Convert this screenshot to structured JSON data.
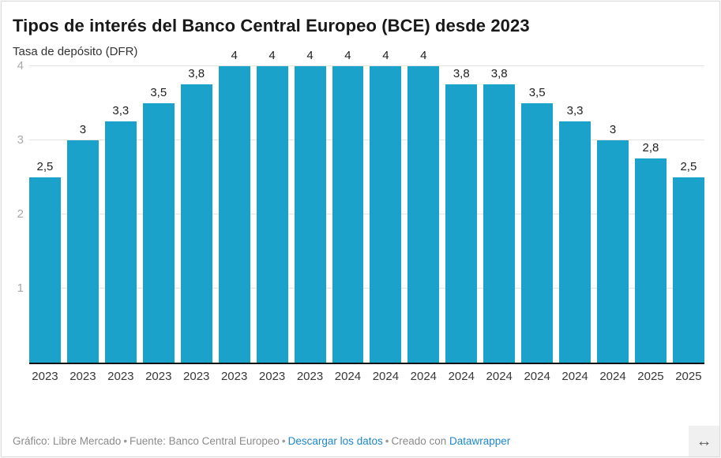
{
  "header": {
    "title": "Tipos de interés del Banco Central Europeo (BCE) desde 2023",
    "subtitle": "Tasa de depósito (DFR)"
  },
  "chart_data": {
    "type": "bar",
    "title": "Tipos de interés del Banco Central Europeo (BCE) desde 2023",
    "subtitle": "Tasa de depósito (DFR)",
    "categories": [
      "2023",
      "2023",
      "2023",
      "2023",
      "2023",
      "2023",
      "2023",
      "2023",
      "2024",
      "2024",
      "2024",
      "2024",
      "2024",
      "2024",
      "2024",
      "2024",
      "2025",
      "2025"
    ],
    "values": [
      2.5,
      3,
      3.25,
      3.5,
      3.75,
      4,
      4,
      4,
      4,
      4,
      4,
      3.75,
      3.75,
      3.5,
      3.25,
      3,
      2.75,
      2.5
    ],
    "value_labels": [
      "2,5",
      "3",
      "3,3",
      "3,5",
      "3,8",
      "4",
      "4",
      "4",
      "4",
      "4",
      "4",
      "3,8",
      "3,8",
      "3,5",
      "3,3",
      "3",
      "2,8",
      "2,5"
    ],
    "xlabel": "",
    "ylabel": "",
    "ylim": [
      0,
      4.26
    ],
    "yticks": [
      1,
      2,
      3,
      4
    ],
    "grid": "on",
    "legend": "none",
    "bar_color": "#1ba2cb",
    "pixels_per_unit": 94
  },
  "colors": {
    "bar": "#1ba2cb",
    "gridline": "#e4e4e4",
    "axis_tick_text": "#a9a9ad",
    "value_label": "#1f1f1f",
    "x_label": "#383838",
    "baseline": "#111111",
    "link": "#1e87c9",
    "footer_text": "#8b8b8b"
  },
  "footer": {
    "attribution": "Gráfico: Libre Mercado",
    "source": "Fuente: Banco Central Europeo",
    "download_label": "Descargar los datos",
    "created_with": "Creado con",
    "tool_name": "Datawrapper",
    "separator": "•",
    "expand_icon": "↔"
  }
}
